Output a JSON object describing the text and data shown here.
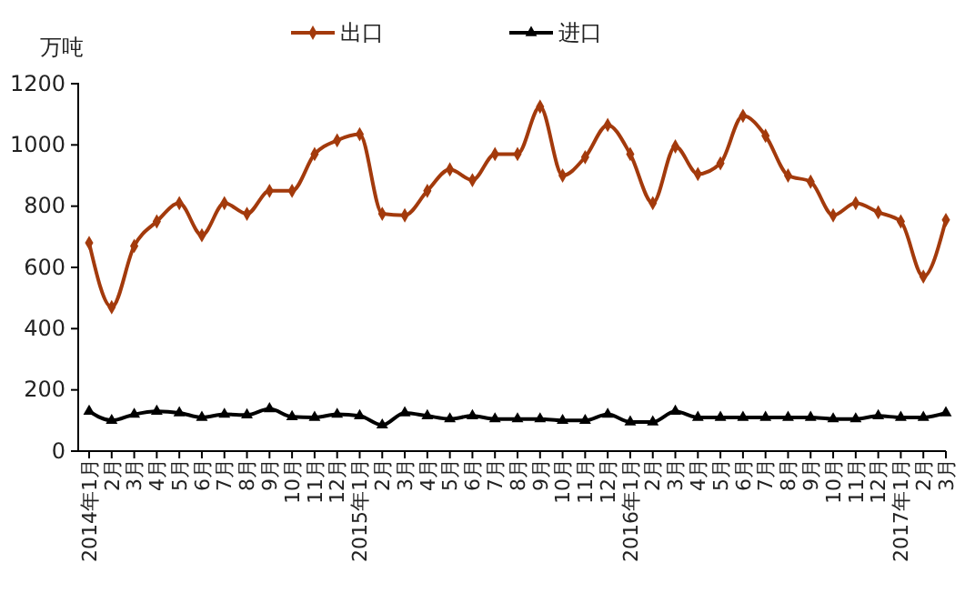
{
  "chart_data": {
    "type": "line",
    "ylabel": "万吨",
    "categories": [
      "2014年1月",
      "2月",
      "3月",
      "4月",
      "5月",
      "6月",
      "7月",
      "8月",
      "9月",
      "10月",
      "11月",
      "12月",
      "2015年1月",
      "2月",
      "3月",
      "4月",
      "5月",
      "6月",
      "7月",
      "8月",
      "9月",
      "10月",
      "11月",
      "12月",
      "2016年1月",
      "2月",
      "3月",
      "4月",
      "5月",
      "6月",
      "7月",
      "8月",
      "9月",
      "10月",
      "11月",
      "12月",
      "2017年1月",
      "2月",
      "3月"
    ],
    "series": [
      {
        "name": "出口",
        "color": "#a33a0c",
        "marker": "diamond",
        "values": [
          680,
          470,
          670,
          750,
          810,
          705,
          810,
          775,
          850,
          850,
          970,
          1015,
          1035,
          775,
          770,
          850,
          920,
          885,
          970,
          970,
          1125,
          900,
          960,
          1065,
          970,
          810,
          995,
          905,
          940,
          1095,
          1030,
          900,
          880,
          770,
          810,
          780,
          750,
          570,
          755
        ]
      },
      {
        "name": "进口",
        "color": "#000000",
        "marker": "triangle",
        "values": [
          130,
          100,
          120,
          130,
          125,
          110,
          120,
          118,
          138,
          112,
          110,
          120,
          115,
          85,
          125,
          115,
          105,
          115,
          105,
          105,
          105,
          100,
          100,
          120,
          95,
          95,
          130,
          110,
          110,
          110,
          110,
          110,
          110,
          105,
          105,
          115,
          110,
          110,
          125
        ]
      }
    ],
    "ylim": [
      0,
      1200
    ],
    "yticks": [
      0,
      200,
      400,
      600,
      800,
      1000,
      1200
    ],
    "legend": "top",
    "line_style": "solid"
  }
}
